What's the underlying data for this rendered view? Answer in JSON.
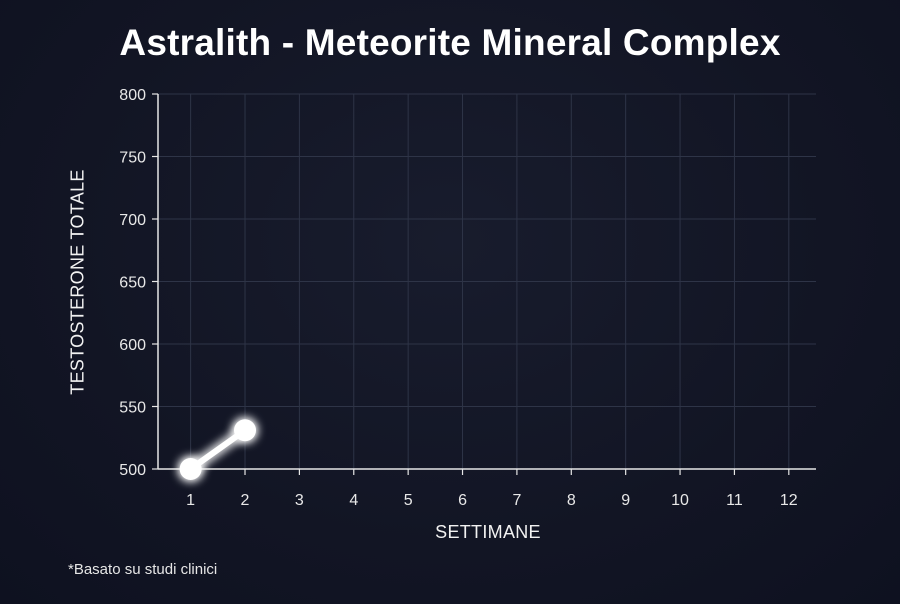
{
  "chart_data": {
    "type": "line",
    "title": "Astralith - Meteorite Mineral Complex",
    "xlabel": "SETTIMANE",
    "ylabel": "TESTOSTERONE TOTALE",
    "x_ticks": [
      "1",
      "2",
      "3",
      "4",
      "5",
      "6",
      "7",
      "8",
      "9",
      "10",
      "11",
      "12"
    ],
    "y_ticks": [
      "500",
      "550",
      "600",
      "650",
      "700",
      "750",
      "800"
    ],
    "xlim": [
      0.4,
      12.5
    ],
    "ylim": [
      500,
      800
    ],
    "grid": true,
    "series": [
      {
        "x": [
          1,
          2
        ],
        "values": [
          500,
          531
        ]
      }
    ],
    "colors": {
      "line": "#ffffff",
      "grid": "#2e3447",
      "axis": "#e6e6e6"
    }
  },
  "footnote": "*Basato su studi clinici"
}
